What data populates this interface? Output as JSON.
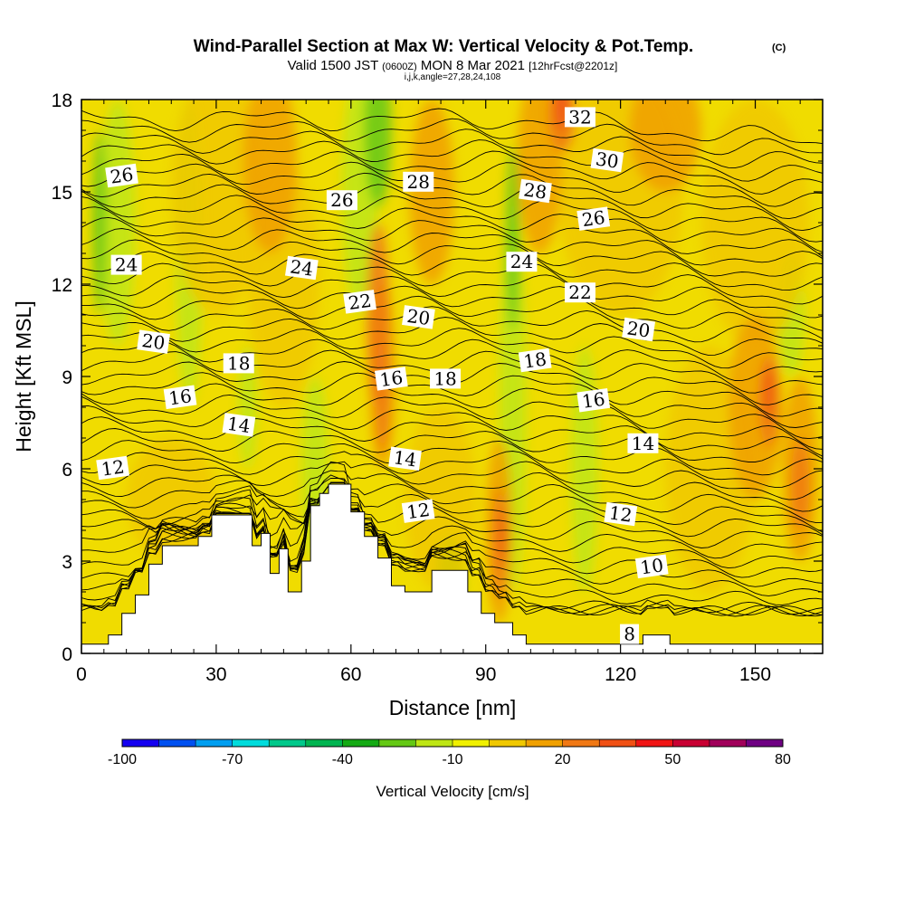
{
  "chart_data": {
    "type": "contour",
    "title": "Wind-Parallel Section at Max W: Vertical Velocity & Pot.Temp.",
    "title_mark": "(C)",
    "subtitle_prefix": "Valid 1500 JST",
    "subtitle_utc": "(0600Z)",
    "subtitle_main": "MON 8 Mar 2021",
    "subtitle_fcst": "[12hrFcst@2201z]",
    "subtitle2": "i,j,k,angle=27,28,24,108",
    "xlabel": "Distance [nm]",
    "ylabel": "Height [Kft MSL]",
    "xlim": [
      0,
      165
    ],
    "ylim": [
      0,
      18
    ],
    "x_ticks": [
      "0",
      "30",
      "60",
      "90",
      "120",
      "150"
    ],
    "y_ticks": [
      "0",
      "3",
      "6",
      "9",
      "12",
      "15",
      "18"
    ],
    "colorbar": {
      "label": "Vertical Velocity [cm/s]",
      "tick_labels": [
        "-100",
        "-70",
        "-40",
        "-10",
        "20",
        "50",
        "80"
      ],
      "colors": [
        "#1400f0",
        "#0050f0",
        "#009ef0",
        "#00dcdc",
        "#00c88a",
        "#00b450",
        "#14aa14",
        "#64c814",
        "#bee614",
        "#f0f000",
        "#f0c800",
        "#f0a000",
        "#f07814",
        "#f05014",
        "#f01414",
        "#c80032",
        "#a0005a",
        "#6e0082"
      ]
    },
    "theta_labels": [
      {
        "text": "26",
        "x": 9,
        "y": 15.5
      },
      {
        "text": "24",
        "x": 10,
        "y": 12.6
      },
      {
        "text": "20",
        "x": 16,
        "y": 10.1
      },
      {
        "text": "16",
        "x": 22,
        "y": 8.3
      },
      {
        "text": "18",
        "x": 35,
        "y": 9.4
      },
      {
        "text": "14",
        "x": 35,
        "y": 7.4
      },
      {
        "text": "12",
        "x": 7,
        "y": 6.0
      },
      {
        "text": "26",
        "x": 58,
        "y": 14.7
      },
      {
        "text": "24",
        "x": 49,
        "y": 12.5
      },
      {
        "text": "22",
        "x": 62,
        "y": 11.4
      },
      {
        "text": "28",
        "x": 75,
        "y": 15.3
      },
      {
        "text": "20",
        "x": 75,
        "y": 10.9
      },
      {
        "text": "16",
        "x": 69,
        "y": 8.9
      },
      {
        "text": "18",
        "x": 81,
        "y": 8.9
      },
      {
        "text": "14",
        "x": 72,
        "y": 6.3
      },
      {
        "text": "12",
        "x": 75,
        "y": 4.6
      },
      {
        "text": "24",
        "x": 98,
        "y": 12.7
      },
      {
        "text": "28",
        "x": 101,
        "y": 15.0
      },
      {
        "text": "18",
        "x": 101,
        "y": 9.5
      },
      {
        "text": "32",
        "x": 111,
        "y": 17.4
      },
      {
        "text": "30",
        "x": 117,
        "y": 16.0
      },
      {
        "text": "26",
        "x": 114,
        "y": 14.1
      },
      {
        "text": "22",
        "x": 111,
        "y": 11.7
      },
      {
        "text": "20",
        "x": 124,
        "y": 10.5
      },
      {
        "text": "16",
        "x": 114,
        "y": 8.2
      },
      {
        "text": "14",
        "x": 125,
        "y": 6.8
      },
      {
        "text": "12",
        "x": 120,
        "y": 4.5
      },
      {
        "text": "10",
        "x": 127,
        "y": 2.8
      },
      {
        "text": "8",
        "x": 122,
        "y": 0.6
      }
    ],
    "terrain_profile": [
      [
        0,
        0.3
      ],
      [
        6,
        0.3
      ],
      [
        6,
        0.6
      ],
      [
        9,
        0.6
      ],
      [
        9,
        1.3
      ],
      [
        12,
        1.3
      ],
      [
        12,
        1.9
      ],
      [
        15,
        1.9
      ],
      [
        15,
        2.9
      ],
      [
        18,
        2.9
      ],
      [
        18,
        3.5
      ],
      [
        26,
        3.5
      ],
      [
        26,
        3.8
      ],
      [
        29,
        3.8
      ],
      [
        29,
        4.5
      ],
      [
        38,
        4.5
      ],
      [
        38,
        3.5
      ],
      [
        40,
        3.5
      ],
      [
        40,
        3.9
      ],
      [
        42,
        3.9
      ],
      [
        42,
        2.6
      ],
      [
        44,
        2.6
      ],
      [
        44,
        3.4
      ],
      [
        46,
        3.4
      ],
      [
        46,
        2.0
      ],
      [
        49,
        2.0
      ],
      [
        49,
        3.0
      ],
      [
        51,
        3.0
      ],
      [
        51,
        4.8
      ],
      [
        53,
        4.8
      ],
      [
        53,
        5.2
      ],
      [
        55,
        5.2
      ],
      [
        55,
        5.5
      ],
      [
        60,
        5.5
      ],
      [
        60,
        4.6
      ],
      [
        63,
        4.6
      ],
      [
        63,
        3.8
      ],
      [
        66,
        3.8
      ],
      [
        66,
        3.1
      ],
      [
        69,
        3.1
      ],
      [
        69,
        2.2
      ],
      [
        72,
        2.2
      ],
      [
        72,
        2.0
      ],
      [
        78,
        2.0
      ],
      [
        78,
        2.7
      ],
      [
        86,
        2.7
      ],
      [
        86,
        2.0
      ],
      [
        89,
        2.0
      ],
      [
        89,
        1.3
      ],
      [
        92,
        1.3
      ],
      [
        92,
        1.0
      ],
      [
        96,
        1.0
      ],
      [
        96,
        0.6
      ],
      [
        99,
        0.6
      ],
      [
        99,
        0.3
      ],
      [
        125,
        0.3
      ],
      [
        125,
        0.6
      ],
      [
        131,
        0.6
      ],
      [
        131,
        0.3
      ],
      [
        165,
        0.3
      ]
    ]
  }
}
